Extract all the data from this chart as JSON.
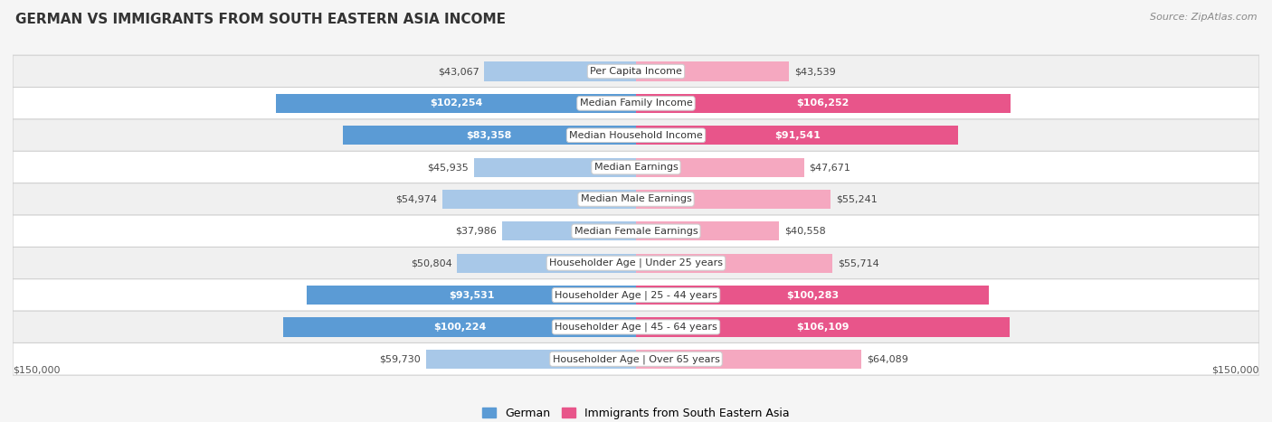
{
  "title": "GERMAN VS IMMIGRANTS FROM SOUTH EASTERN ASIA INCOME",
  "source": "Source: ZipAtlas.com",
  "categories": [
    "Per Capita Income",
    "Median Family Income",
    "Median Household Income",
    "Median Earnings",
    "Median Male Earnings",
    "Median Female Earnings",
    "Householder Age | Under 25 years",
    "Householder Age | 25 - 44 years",
    "Householder Age | 45 - 64 years",
    "Householder Age | Over 65 years"
  ],
  "german_values": [
    43067,
    102254,
    83358,
    45935,
    54974,
    37986,
    50804,
    93531,
    100224,
    59730
  ],
  "immigrant_values": [
    43539,
    106252,
    91541,
    47671,
    55241,
    40558,
    55714,
    100283,
    106109,
    64089
  ],
  "german_labels": [
    "$43,067",
    "$102,254",
    "$83,358",
    "$45,935",
    "$54,974",
    "$37,986",
    "$50,804",
    "$93,531",
    "$100,224",
    "$59,730"
  ],
  "immigrant_labels": [
    "$43,539",
    "$106,252",
    "$91,541",
    "$47,671",
    "$55,241",
    "$40,558",
    "$55,714",
    "$100,283",
    "$106,109",
    "$64,089"
  ],
  "german_color_light": "#a8c8e8",
  "german_color_dark": "#5b9bd5",
  "immigrant_color_light": "#f5a8c0",
  "immigrant_color_dark": "#e8558a",
  "german_label_inside": [
    false,
    true,
    true,
    false,
    false,
    false,
    false,
    true,
    true,
    false
  ],
  "immigrant_label_inside": [
    false,
    true,
    true,
    false,
    false,
    false,
    false,
    true,
    true,
    false
  ],
  "german_dark": [
    false,
    true,
    true,
    false,
    false,
    false,
    false,
    true,
    true,
    false
  ],
  "immigrant_dark": [
    false,
    true,
    true,
    false,
    false,
    false,
    false,
    true,
    true,
    false
  ],
  "max_val": 150000,
  "bar_height": 0.6,
  "background_color": "#f5f5f5",
  "row_bg_even": "#f0f0f0",
  "row_bg_odd": "#ffffff",
  "legend_german": "German",
  "legend_immigrant": "Immigrants from South Eastern Asia",
  "xlabel_left": "$150,000",
  "xlabel_right": "$150,000",
  "title_fontsize": 11,
  "source_fontsize": 8,
  "label_fontsize": 8,
  "cat_fontsize": 8
}
